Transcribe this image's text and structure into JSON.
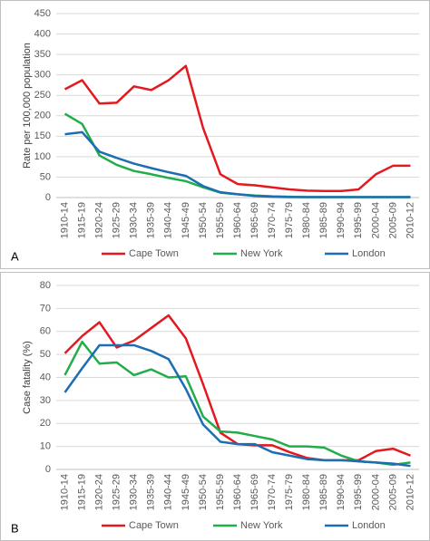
{
  "chart_data": [
    {
      "type": "line",
      "panel_label": "A",
      "y_label": "Rate per 100,000 population",
      "categories": [
        "1910-14",
        "1915-19",
        "1920-24",
        "1925-29",
        "1930-34",
        "1935-39",
        "1940-44",
        "1945-49",
        "1950-54",
        "1955-59",
        "1960-64",
        "1965-69",
        "1970-74",
        "1975-79",
        "1980-84",
        "1985-89",
        "1990-94",
        "1995-99",
        "2000-04",
        "2005-09",
        "2010-12"
      ],
      "ylim": [
        0,
        450
      ],
      "yticks": [
        0,
        50,
        100,
        150,
        200,
        250,
        300,
        350,
        400,
        450
      ],
      "grid": true,
      "series": [
        {
          "name": "Cape Town",
          "color": "#e3191f",
          "values": [
            265,
            287,
            230,
            232,
            272,
            263,
            287,
            322,
            170,
            57,
            33,
            30,
            25,
            20,
            17,
            16,
            16,
            20,
            57,
            78,
            78
          ]
        },
        {
          "name": "New York",
          "color": "#21ad4a",
          "values": [
            205,
            180,
            103,
            80,
            65,
            57,
            48,
            40,
            25,
            12,
            8,
            5,
            3,
            2,
            1,
            1,
            1,
            1,
            1,
            1,
            1
          ]
        },
        {
          "name": "London",
          "color": "#1d6db3",
          "values": [
            155,
            160,
            112,
            97,
            83,
            72,
            62,
            53,
            28,
            13,
            8,
            4,
            2,
            1,
            1,
            1,
            1,
            1,
            1,
            1,
            1
          ]
        }
      ]
    },
    {
      "type": "line",
      "panel_label": "B",
      "y_label": "Case fatality (%)",
      "categories": [
        "1910-14",
        "1915-19",
        "1920-24",
        "1925-29",
        "1930-34",
        "1935-39",
        "1940-44",
        "1945-49",
        "1950-54",
        "1955-59",
        "1960-64",
        "1965-69",
        "1970-74",
        "1975-79",
        "1980-84",
        "1985-89",
        "1990-94",
        "1995-99",
        "2000-04",
        "2005-09",
        "2010-12"
      ],
      "ylim": [
        0,
        80
      ],
      "yticks": [
        0,
        10,
        20,
        30,
        40,
        50,
        60,
        70,
        80
      ],
      "grid": true,
      "series": [
        {
          "name": "Cape Town",
          "color": "#e3191f",
          "values": [
            50.5,
            58,
            64,
            53,
            56,
            61.5,
            67,
            57,
            37,
            16,
            11,
            10.5,
            10.5,
            7.5,
            5,
            4,
            4,
            4,
            8,
            9,
            6
          ]
        },
        {
          "name": "New York",
          "color": "#21ad4a",
          "values": [
            41,
            55.5,
            46,
            46.5,
            41,
            43.5,
            40,
            40.5,
            23,
            16.5,
            16,
            14.5,
            13,
            10,
            10,
            9.5,
            6,
            3.5,
            3,
            2,
            3
          ]
        },
        {
          "name": "London",
          "color": "#1d6db3",
          "values": [
            33.5,
            44,
            54,
            54,
            54,
            51.5,
            48,
            35,
            19.5,
            12,
            11,
            11,
            7.5,
            6,
            4.5,
            4,
            4,
            3.5,
            3,
            2.5,
            1.5
          ]
        }
      ]
    }
  ]
}
